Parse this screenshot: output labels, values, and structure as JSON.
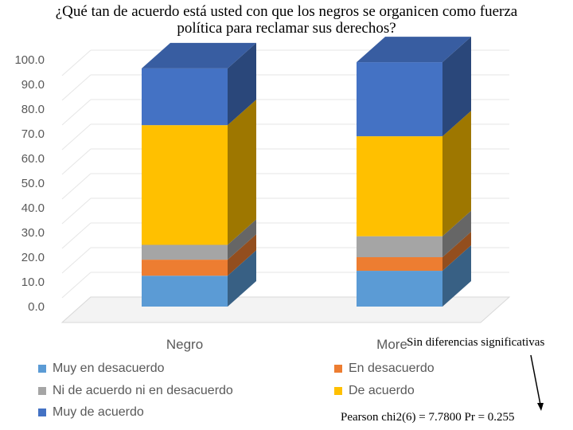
{
  "title_line1": "¿Qué tan de acuerdo está usted con que los negros se organicen como fuerza",
  "title_line2": "política para reclamar sus derechos?",
  "note_top": "Sin diferencias significativas",
  "note_bottom": "Pearson chi2(6) =   7.7800   Pr = 0.255",
  "chart_data": {
    "type": "bar",
    "stacked": true,
    "three_d": true,
    "categories": [
      "Negro",
      "Moreno"
    ],
    "ylim": [
      0,
      100
    ],
    "yticks": [
      "0.0",
      "10.0",
      "20.0",
      "30.0",
      "40.0",
      "50.0",
      "60.0",
      "70.0",
      "80.0",
      "90.0",
      "100.0"
    ],
    "series": [
      {
        "name": "Muy en desacuerdo",
        "color": "#5B9BD5",
        "values": [
          12.5,
          14.5
        ]
      },
      {
        "name": "En desacuerdo",
        "color": "#ED7D31",
        "values": [
          6.5,
          5.5
        ]
      },
      {
        "name": "Ni de acuerdo ni en desacuerdo",
        "color": "#A5A5A5",
        "values": [
          6.0,
          8.5
        ]
      },
      {
        "name": "De acuerdo",
        "color": "#FFC000",
        "values": [
          48.5,
          40.5
        ]
      },
      {
        "name": "Muy de acuerdo",
        "color": "#4472C4",
        "values": [
          23.0,
          30.0
        ]
      }
    ],
    "legend_position": "bottom"
  }
}
